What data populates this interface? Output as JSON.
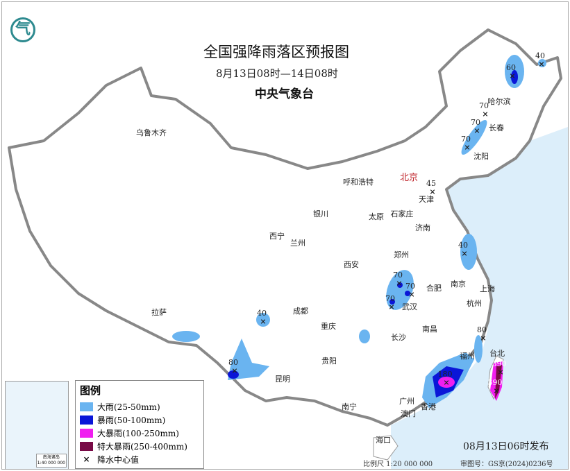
{
  "title": "全国强降雨落区预报图",
  "subtitle": "8月13日08时—14日08时",
  "agency": "中央气象台",
  "logo_text": "气",
  "colors": {
    "heavy_rain": "#6ab4f0",
    "rainstorm": "#0a16d8",
    "heavy_rainstorm": "#f01ef0",
    "extreme_rainstorm": "#780a46",
    "sea": "#dceefa",
    "border": "#888888",
    "capital": "#c0262c"
  },
  "cities": [
    "乌鲁木齐",
    "哈尔滨",
    "长春",
    "沈阳",
    "呼和浩特",
    "北京",
    "天津",
    "银川",
    "太原",
    "石家庄",
    "济南",
    "西宁",
    "兰州",
    "郑州",
    "西安",
    "合肥",
    "南京",
    "上海",
    "武汉",
    "杭州",
    "拉萨",
    "成都",
    "重庆",
    "南昌",
    "长沙",
    "福州",
    "台北",
    "贵阳",
    "昆明",
    "南宁",
    "广州",
    "澳门",
    "香港",
    "海口"
  ],
  "rain_centers": [
    "60",
    "40",
    "70",
    "70",
    "70",
    "45",
    "40",
    "70",
    "70",
    "70",
    "40",
    "80",
    "80",
    "180",
    "390",
    "390"
  ],
  "legend": {
    "title": "图例",
    "items": [
      {
        "label": "大雨(25-50mm)",
        "color": "#6ab4f0"
      },
      {
        "label": "暴雨(50-100mm)",
        "color": "#0a16d8"
      },
      {
        "label": "大暴雨(100-250mm)",
        "color": "#f01ef0"
      },
      {
        "label": "特大暴雨(250-400mm)",
        "color": "#780a46"
      }
    ],
    "center_symbol": "×",
    "center_label": "降水中心值"
  },
  "inset": {
    "name": "南海诸岛",
    "scale": "1:40 000 000"
  },
  "issue_time": "08月13日06时发布",
  "scale": "比例尺 1:20 000 000",
  "review_no": "审图号：GS京(2024)0236号"
}
